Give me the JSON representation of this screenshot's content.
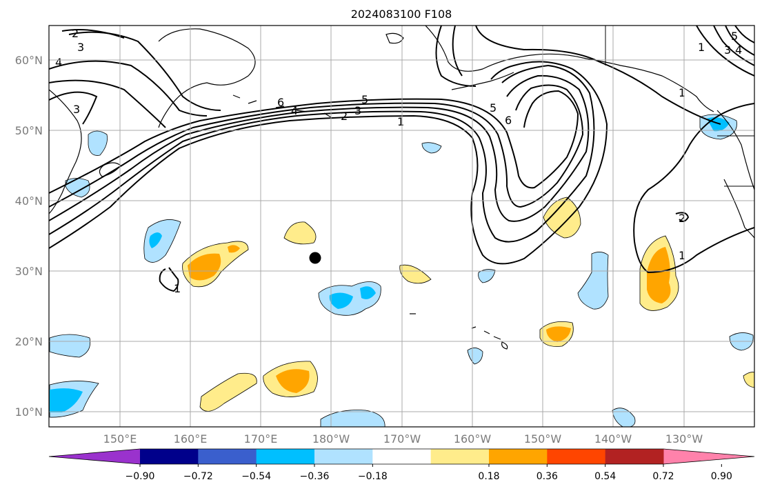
{
  "title": "2024083100 F108",
  "map": {
    "lat_labels": [
      "60°N",
      "50°N",
      "40°N",
      "30°N",
      "20°N",
      "10°N"
    ],
    "lon_labels": [
      "150°E",
      "160°E",
      "170°E",
      "180°W",
      "170°W",
      "160°W",
      "150°W",
      "140°W",
      "130°W"
    ],
    "marker": "black-dot"
  },
  "contour_labels": [
    "2",
    "3",
    "4",
    "3",
    "6",
    "4",
    "5",
    "3",
    "2",
    "1",
    "5",
    "6",
    "1",
    "1",
    "2",
    "5",
    "3",
    "4",
    "1",
    "1"
  ],
  "colorbar": {
    "ticks": [
      "−0.90",
      "−0.72",
      "−0.54",
      "−0.36",
      "−0.18",
      "0.18",
      "0.36",
      "0.54",
      "0.72",
      "0.90"
    ],
    "colors": [
      "#9a32cd",
      "#00008b",
      "#3a5fcd",
      "#00bfff",
      "#b0e2ff",
      "#ffffff",
      "#ffec8b",
      "#ffa500",
      "#ff4500",
      "#b22222",
      "#ff82ab"
    ]
  }
}
